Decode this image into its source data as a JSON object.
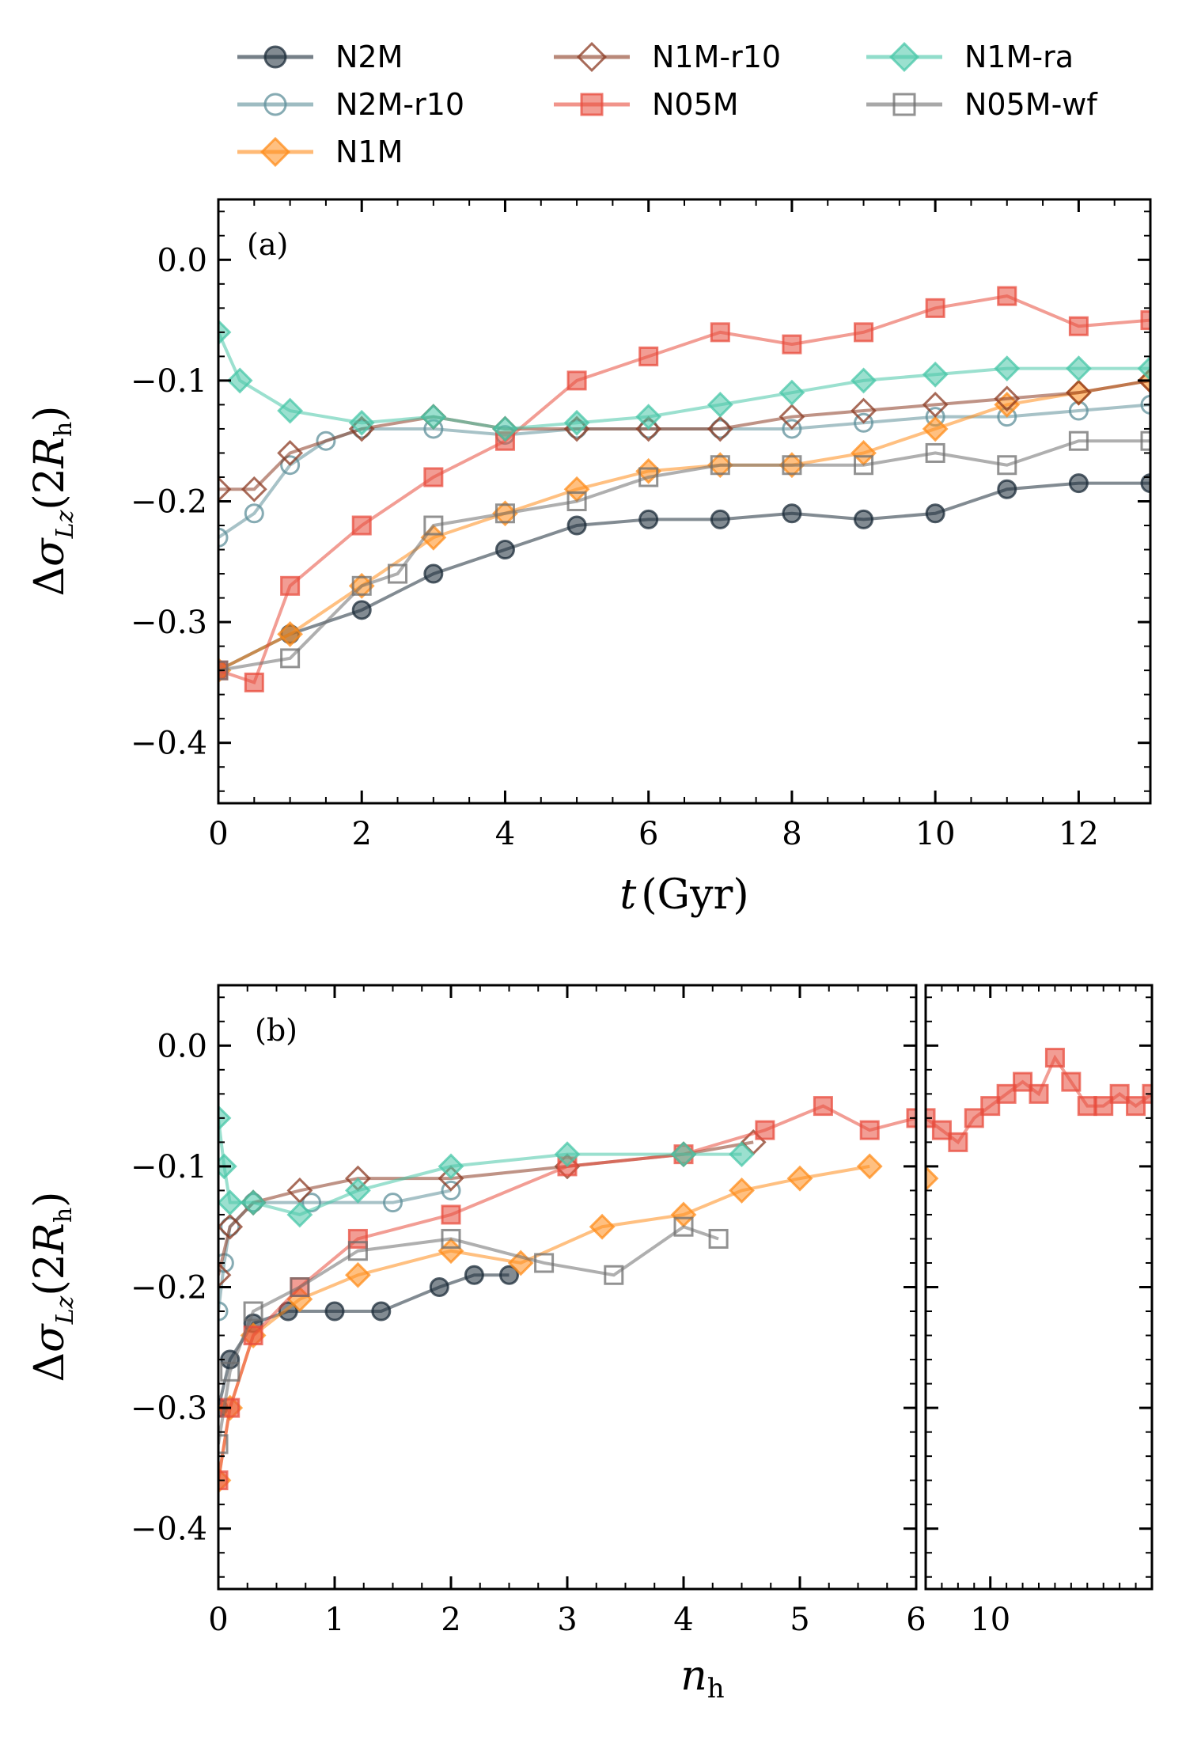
{
  "legend": {
    "items": [
      {
        "label": "N2M",
        "color": "#1b2b38",
        "marker": "circle",
        "filled": true
      },
      {
        "label": "N2M-r10",
        "color": "#5e8f99",
        "marker": "circle",
        "filled": false
      },
      {
        "label": "N1M",
        "color": "#ff8c1a",
        "marker": "diamond",
        "filled": true
      },
      {
        "label": "N1M-r10",
        "color": "#8b3a22",
        "marker": "diamond",
        "filled": false
      },
      {
        "label": "N05M",
        "color": "#e84c3d",
        "marker": "square",
        "filled": true
      },
      {
        "label": "N1M-ra",
        "color": "#48c7a8",
        "marker": "diamond",
        "filled": true
      },
      {
        "label": "N05M-wf",
        "color": "#6e6e6e",
        "marker": "square",
        "filled": false
      }
    ]
  },
  "chart_data": [
    {
      "type": "scatter",
      "panel_label": "(a)",
      "xlabel": "t (Gyr)",
      "xlabel_italic": "t",
      "xlabel_unit": "(Gyr)",
      "ylabel": "Δσ_Lz(2R_h)",
      "xlim": [
        0,
        13
      ],
      "ylim": [
        -0.45,
        0.05
      ],
      "xticks": [
        0,
        2,
        4,
        6,
        8,
        10,
        12
      ],
      "xtick_labels": [
        "0",
        "2",
        "4",
        "6",
        "8",
        "10",
        "12"
      ],
      "yticks": [
        0.0,
        -0.1,
        -0.2,
        -0.3,
        -0.4
      ],
      "ytick_labels": [
        "0.0",
        "−0.1",
        "−0.2",
        "−0.3",
        "−0.4"
      ],
      "series": [
        {
          "name": "N2M",
          "x": [
            0,
            1,
            2,
            3,
            4,
            5,
            6,
            7,
            8,
            9,
            10,
            11,
            12,
            13
          ],
          "values": [
            -0.34,
            -0.31,
            -0.29,
            -0.26,
            -0.24,
            -0.22,
            -0.215,
            -0.215,
            -0.21,
            -0.215,
            -0.21,
            -0.19,
            -0.185,
            -0.185
          ]
        },
        {
          "name": "N2M-r10",
          "x": [
            0,
            0.5,
            1,
            1.5,
            2,
            3,
            4,
            5,
            6,
            7,
            8,
            9,
            10,
            11,
            12,
            13
          ],
          "values": [
            -0.23,
            -0.21,
            -0.17,
            -0.15,
            -0.14,
            -0.14,
            -0.145,
            -0.14,
            -0.14,
            -0.14,
            -0.14,
            -0.135,
            -0.13,
            -0.13,
            -0.125,
            -0.12
          ]
        },
        {
          "name": "N1M",
          "x": [
            0,
            1,
            2,
            3,
            4,
            5,
            6,
            7,
            8,
            9,
            10,
            11,
            12,
            13
          ],
          "values": [
            -0.34,
            -0.31,
            -0.27,
            -0.23,
            -0.21,
            -0.19,
            -0.175,
            -0.17,
            -0.17,
            -0.16,
            -0.14,
            -0.12,
            -0.11,
            -0.1
          ]
        },
        {
          "name": "N1M-r10",
          "x": [
            0,
            0.5,
            1,
            2,
            3,
            4,
            5,
            6,
            7,
            8,
            9,
            10,
            11,
            12,
            13
          ],
          "values": [
            -0.19,
            -0.19,
            -0.16,
            -0.14,
            -0.13,
            -0.14,
            -0.14,
            -0.14,
            -0.14,
            -0.13,
            -0.125,
            -0.12,
            -0.115,
            -0.11,
            -0.1
          ]
        },
        {
          "name": "N05M",
          "x": [
            0,
            0.5,
            1,
            2,
            3,
            4,
            5,
            6,
            7,
            8,
            9,
            10,
            11,
            12,
            13
          ],
          "values": [
            -0.34,
            -0.35,
            -0.27,
            -0.22,
            -0.18,
            -0.15,
            -0.1,
            -0.08,
            -0.06,
            -0.07,
            -0.06,
            -0.04,
            -0.03,
            -0.055,
            -0.05
          ]
        },
        {
          "name": "N1M-ra",
          "x": [
            0,
            0.3,
            1,
            2,
            3,
            4,
            5,
            6,
            7,
            8,
            9,
            10,
            11,
            12,
            13
          ],
          "values": [
            -0.06,
            -0.1,
            -0.125,
            -0.135,
            -0.13,
            -0.14,
            -0.135,
            -0.13,
            -0.12,
            -0.11,
            -0.1,
            -0.095,
            -0.09,
            -0.09,
            -0.09
          ]
        },
        {
          "name": "N05M-wf",
          "x": [
            0,
            1,
            2,
            2.5,
            3,
            4,
            5,
            6,
            7,
            8,
            9,
            10,
            11,
            12,
            13
          ],
          "values": [
            -0.34,
            -0.33,
            -0.27,
            -0.26,
            -0.22,
            -0.21,
            -0.2,
            -0.18,
            -0.17,
            -0.17,
            -0.17,
            -0.16,
            -0.17,
            -0.15,
            -0.15
          ]
        }
      ]
    },
    {
      "type": "scatter",
      "panel_label": "(b)",
      "xlabel": "n_h",
      "ylabel": "Δσ_Lz(2R_h)",
      "xlim": [
        0,
        6
      ],
      "ylim": [
        -0.45,
        0.05
      ],
      "xticks": [
        0,
        1,
        2,
        3,
        4,
        5,
        6
      ],
      "xtick_labels": [
        "0",
        "1",
        "2",
        "3",
        "4",
        "5",
        "6"
      ],
      "yticks": [
        0.0,
        -0.1,
        -0.2,
        -0.3,
        -0.4
      ],
      "ytick_labels": [
        "0.0",
        "−0.1",
        "−0.2",
        "−0.3",
        "−0.4"
      ],
      "series": [
        {
          "name": "N2M",
          "x": [
            0,
            0.1,
            0.3,
            0.6,
            1,
            1.4,
            1.9,
            2.2,
            2.5
          ],
          "values": [
            -0.3,
            -0.26,
            -0.23,
            -0.22,
            -0.22,
            -0.22,
            -0.2,
            -0.19,
            -0.19
          ]
        },
        {
          "name": "N2M-r10",
          "x": [
            0,
            0.05,
            0.1,
            0.3,
            0.8,
            1.5,
            2
          ],
          "values": [
            -0.22,
            -0.18,
            -0.15,
            -0.13,
            -0.13,
            -0.13,
            -0.12
          ]
        },
        {
          "name": "N1M",
          "x": [
            0,
            0.1,
            0.3,
            0.7,
            1.2,
            2,
            2.6,
            3.3,
            4,
            4.5,
            5,
            5.6
          ],
          "values": [
            -0.36,
            -0.3,
            -0.24,
            -0.21,
            -0.19,
            -0.17,
            -0.18,
            -0.15,
            -0.14,
            -0.12,
            -0.11,
            -0.1
          ]
        },
        {
          "name": "N1M-r10",
          "x": [
            0,
            0.1,
            0.3,
            0.7,
            1.2,
            2,
            3,
            4,
            4.6
          ],
          "values": [
            -0.19,
            -0.15,
            -0.13,
            -0.12,
            -0.11,
            -0.11,
            -0.1,
            -0.09,
            -0.08
          ]
        },
        {
          "name": "N05M",
          "x": [
            0,
            0.1,
            0.3,
            0.7,
            1.2,
            2,
            3,
            4,
            4.7,
            5.2,
            5.6,
            6
          ],
          "values": [
            -0.36,
            -0.3,
            -0.24,
            -0.2,
            -0.16,
            -0.14,
            -0.1,
            -0.09,
            -0.07,
            -0.05,
            -0.07,
            -0.06
          ]
        },
        {
          "name": "N1M-ra",
          "x": [
            0,
            0.05,
            0.1,
            0.3,
            0.7,
            1.2,
            2,
            3,
            4,
            4.5
          ],
          "values": [
            -0.06,
            -0.1,
            -0.13,
            -0.13,
            -0.14,
            -0.12,
            -0.1,
            -0.09,
            -0.09,
            -0.09
          ]
        },
        {
          "name": "N05M-wf",
          "x": [
            0,
            0.1,
            0.3,
            0.7,
            1.2,
            2,
            2.8,
            3.4,
            4,
            4.3
          ],
          "values": [
            -0.33,
            -0.27,
            -0.22,
            -0.2,
            -0.17,
            -0.16,
            -0.18,
            -0.19,
            -0.15,
            -0.16
          ]
        }
      ]
    },
    {
      "type": "scatter",
      "panel_label": "",
      "xlabel": "",
      "xlim": [
        6,
        20
      ],
      "ylim": [
        -0.45,
        0.05
      ],
      "xticks": [
        10
      ],
      "xtick_labels": [
        "10"
      ],
      "series": [
        {
          "name": "N05M",
          "x": [
            6,
            7,
            8,
            9,
            10,
            11,
            12,
            13,
            14,
            15,
            16,
            17,
            18,
            19,
            20
          ],
          "values": [
            -0.06,
            -0.07,
            -0.08,
            -0.06,
            -0.05,
            -0.04,
            -0.03,
            -0.04,
            -0.01,
            -0.03,
            -0.05,
            -0.05,
            -0.04,
            -0.05,
            -0.04
          ]
        },
        {
          "name": "N1M",
          "x": [
            6
          ],
          "values": [
            -0.11
          ]
        }
      ]
    }
  ]
}
